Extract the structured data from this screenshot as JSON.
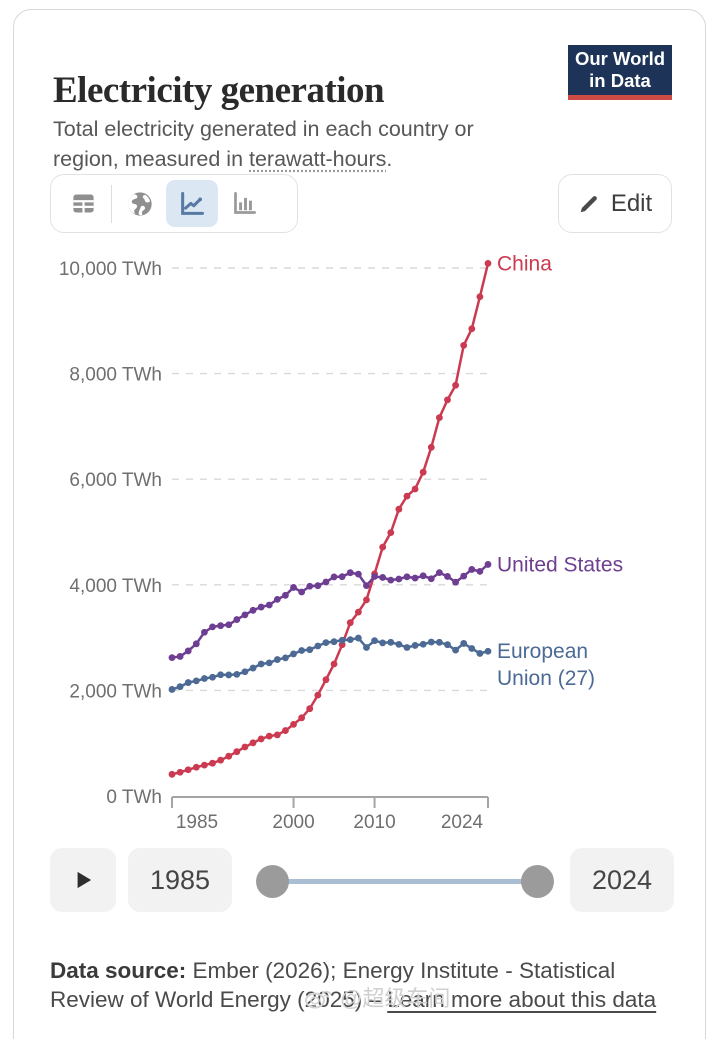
{
  "header": {
    "title": "Electricity generation",
    "subtitle_text": "Total electricity generated in each country or region, measured in ",
    "subtitle_link": "terawatt-hours",
    "subtitle_suffix": ".",
    "logo_line1": "Our World",
    "logo_line2": "in Data"
  },
  "toolbar": {
    "views": [
      "table",
      "globe",
      "line-chart",
      "bar-chart"
    ],
    "active_view": "line-chart",
    "edit_label": "Edit"
  },
  "chart_data": {
    "type": "line",
    "unit": "TWh",
    "x": [
      1985,
      1986,
      1987,
      1988,
      1989,
      1990,
      1991,
      1992,
      1993,
      1994,
      1995,
      1996,
      1997,
      1998,
      1999,
      2000,
      2001,
      2002,
      2003,
      2004,
      2005,
      2006,
      2007,
      2008,
      2009,
      2010,
      2011,
      2012,
      2013,
      2014,
      2015,
      2016,
      2017,
      2018,
      2019,
      2020,
      2021,
      2022,
      2023,
      2024
    ],
    "xticks": [
      1985,
      2000,
      2010,
      2024
    ],
    "ylim": [
      0,
      10000
    ],
    "yticks": [
      0,
      2000,
      4000,
      6000,
      8000,
      10000
    ],
    "ytick_labels": [
      "0 TWh",
      "2,000 TWh",
      "4,000 TWh",
      "6,000 TWh",
      "8,000 TWh",
      "10,000 TWh"
    ],
    "grid": "dashed-horizontal",
    "legend_position": "end-of-line-labels",
    "series": [
      {
        "name": "China",
        "color": "#cb3a50",
        "label_lines": [
          "China"
        ],
        "values": [
          411,
          450,
          497,
          545,
          585,
          621,
          678,
          754,
          839,
          928,
          1007,
          1081,
          1134,
          1157,
          1239,
          1356,
          1481,
          1654,
          1911,
          2203,
          2500,
          2866,
          3282,
          3482,
          3715,
          4207,
          4713,
          4988,
          5432,
          5680,
          5815,
          6133,
          6604,
          7166,
          7503,
          7779,
          8534,
          8849,
          9456,
          10087
        ]
      },
      {
        "name": "United States",
        "color": "#6d3e91",
        "label_lines": [
          "United States"
        ],
        "values": [
          2621,
          2643,
          2747,
          2882,
          3101,
          3203,
          3226,
          3243,
          3342,
          3431,
          3517,
          3578,
          3617,
          3724,
          3801,
          3950,
          3864,
          3972,
          3983,
          4053,
          4149,
          4154,
          4229,
          4202,
          3985,
          4157,
          4139,
          4088,
          4110,
          4151,
          4128,
          4170,
          4115,
          4231,
          4158,
          4050,
          4165,
          4291,
          4254,
          4386
        ]
      },
      {
        "name": "European Union (27)",
        "color": "#4c6a94",
        "label_lines": [
          "European",
          "Union (27)"
        ],
        "values": [
          2018,
          2070,
          2148,
          2180,
          2225,
          2249,
          2297,
          2293,
          2303,
          2353,
          2423,
          2500,
          2521,
          2584,
          2616,
          2691,
          2756,
          2771,
          2841,
          2905,
          2923,
          2949,
          2962,
          2991,
          2813,
          2942,
          2900,
          2911,
          2872,
          2812,
          2852,
          2874,
          2916,
          2911,
          2866,
          2763,
          2889,
          2794,
          2700,
          2742
        ]
      }
    ]
  },
  "timeline": {
    "start_year": "1985",
    "end_year": "2024"
  },
  "footer": {
    "source_label": "Data source:",
    "source_text": " Ember (2026); Energy Institute - Statistical Review of World Energy (2025) – ",
    "link_text": "Learn more about this data"
  },
  "watermark": "@超级车间"
}
